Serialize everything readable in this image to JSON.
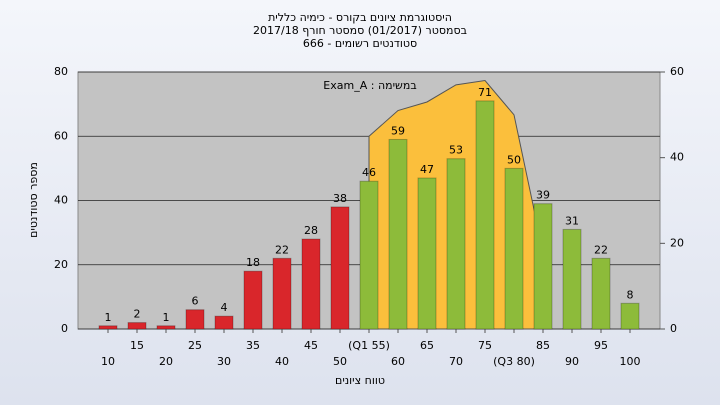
{
  "chart_data": {
    "type": "bar",
    "title": [
      "היסטוגרמת ציונים בקורס - כימיה כללית",
      "בסמסטר  (01/2017)  סמסטר חורף 2017/18",
      "סטודנטים רשומים - 666"
    ],
    "annotation": "Exam_A : במשימה",
    "xlabel": "טווח ציונים",
    "ylabel": "מספר סטודנטים",
    "categories": [
      "10",
      "15",
      "20",
      "25",
      "30",
      "35",
      "40",
      "45",
      "50",
      "(Q1 55)",
      "60",
      "65",
      "70",
      "75",
      "(Q3 80)",
      "85",
      "90",
      "95",
      "100"
    ],
    "values": [
      1,
      2,
      1,
      6,
      4,
      18,
      22,
      28,
      38,
      46,
      59,
      47,
      53,
      71,
      50,
      39,
      31,
      22,
      8
    ],
    "colors": [
      "#d9262b",
      "#d9262b",
      "#d9262b",
      "#d9262b",
      "#d9262b",
      "#d9262b",
      "#d9262b",
      "#d9262b",
      "#d9262b",
      "#8dbb3a",
      "#8dbb3a",
      "#8dbb3a",
      "#8dbb3a",
      "#8dbb3a",
      "#8dbb3a",
      "#8dbb3a",
      "#8dbb3a",
      "#8dbb3a",
      "#8dbb3a"
    ],
    "area": {
      "color": "#fbbf3c",
      "axis": "y2",
      "values": [
        null,
        null,
        null,
        null,
        null,
        null,
        null,
        null,
        null,
        45,
        51,
        53,
        57,
        58,
        50,
        18,
        null,
        null,
        null
      ]
    },
    "ylim": [
      0,
      80
    ],
    "yticks": [
      0,
      20,
      40,
      60,
      80
    ],
    "y2lim": [
      0,
      60
    ],
    "y2ticks": [
      0,
      20,
      40,
      60
    ],
    "grid": true
  }
}
